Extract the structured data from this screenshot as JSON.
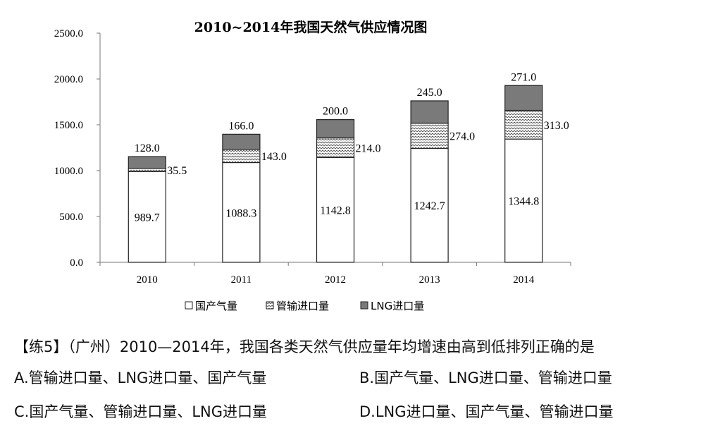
{
  "chart_data": {
    "type": "bar",
    "stacked": true,
    "title": "2010~2014年我国天然气供应情况图",
    "categories": [
      "2010",
      "2011",
      "2012",
      "2013",
      "2014"
    ],
    "series": [
      {
        "name": "国产气量",
        "values": [
          989.7,
          1088.3,
          1142.8,
          1242.7,
          1344.8
        ],
        "value_labels": [
          "989.7",
          "1088.3",
          "1142.8",
          "1242.7",
          "1344.8"
        ],
        "fill": "white",
        "label_position": "inside"
      },
      {
        "name": "管输进口量",
        "values": [
          35.5,
          143.0,
          214.0,
          274.0,
          313.0
        ],
        "value_labels": [
          "35.5",
          "143.0",
          "214.0",
          "274.0",
          "313.0"
        ],
        "fill": "zigzag",
        "label_position": "right"
      },
      {
        "name": "LNG进口量",
        "values": [
          128.0,
          166.0,
          200.0,
          245.0,
          271.0
        ],
        "value_labels": [
          "128.0",
          "166.0",
          "200.0",
          "245.0",
          "271.0"
        ],
        "fill": "dark-gray",
        "label_position": "above"
      }
    ],
    "ylim": [
      0,
      2500
    ],
    "y_ticks": [
      "0.0",
      "500.0",
      "1000.0",
      "1500.0",
      "2000.0",
      "2500.0"
    ],
    "xlabel": "",
    "ylabel": "",
    "grid": false,
    "legend_position": "bottom",
    "colors": {
      "domestic": "#ffffff",
      "pipeline": "#ffffff",
      "lng": "#7a7a7a",
      "outline": "#222222"
    }
  },
  "question": {
    "stem": "【练5】（广州）2010—2014年，我国各类天然气供应量年均增速由高到低排列正确的是",
    "options": [
      {
        "label": "A.管输进口量、LNG进口量、国产气量"
      },
      {
        "label": "B.国产气量、LNG进口量、管输进口量"
      },
      {
        "label": "C.国产气量、管输进口量、LNG进口量"
      },
      {
        "label": "D.LNG进口量、国产气量、管输进口量"
      }
    ]
  }
}
